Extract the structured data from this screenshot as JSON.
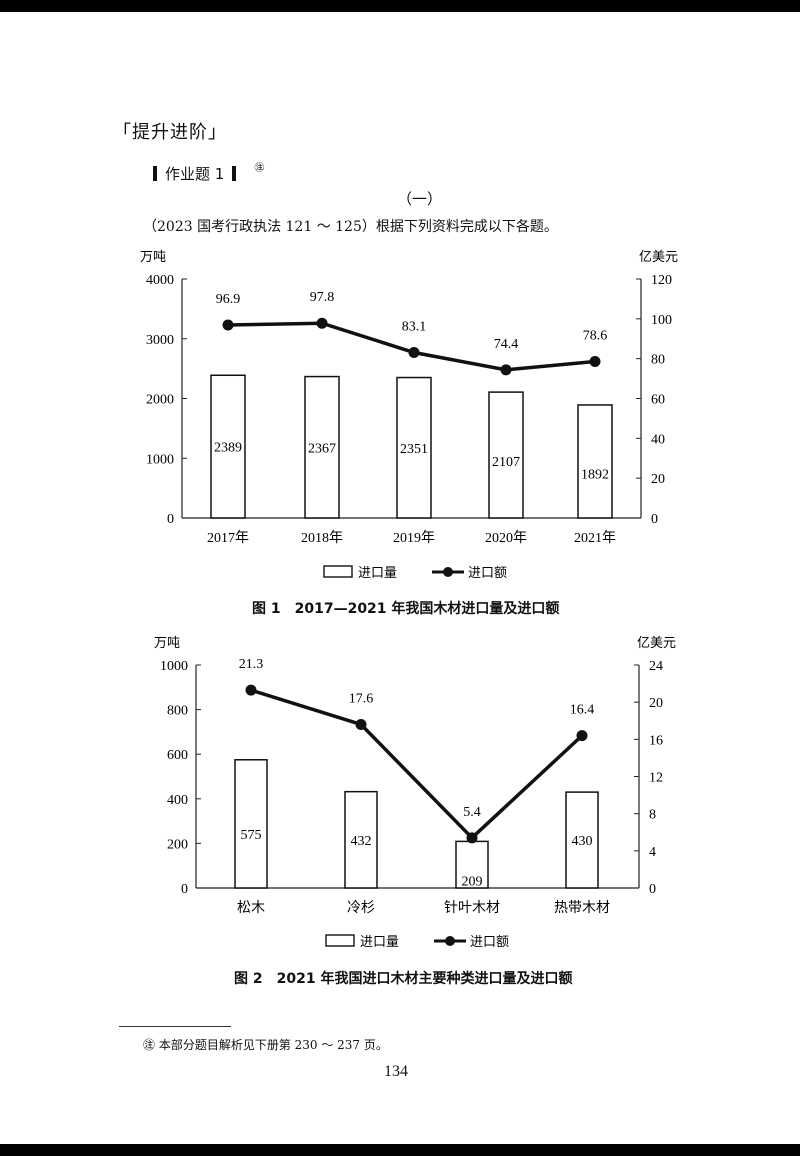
{
  "page": {
    "section_title": "「提升进阶」",
    "homework_title": "作业题 1",
    "homework_marker": "㊟",
    "part_label": "（一）",
    "intro": "（2023 国考行政执法 121 ～ 125）根据下列资料完成以下各题。",
    "footnote": "㊟ 本部分题目解析见下册第 230 ～ 237 页。",
    "page_number": "134"
  },
  "figure1": {
    "caption": "图 1　2017—2021 年我国木材进口量及进口额",
    "left_unit": "万吨",
    "right_unit": "亿美元",
    "legend": {
      "bar": "进口量",
      "line": "进口额"
    }
  },
  "figure2": {
    "caption": "图 2　2021 年我国进口木材主要种类进口量及进口额",
    "left_unit": "万吨",
    "right_unit": "亿美元",
    "legend": {
      "bar": "进口量",
      "line": "进口额"
    }
  },
  "chart_data": [
    {
      "type": "bar",
      "title": "图 1 2017—2021 年我国木材进口量及进口额",
      "categories": [
        "2017年",
        "2018年",
        "2019年",
        "2020年",
        "2021年"
      ],
      "series": [
        {
          "name": "进口量",
          "type": "bar",
          "axis": "left",
          "unit": "万吨",
          "values": [
            2389,
            2367,
            2351,
            2107,
            1892
          ]
        },
        {
          "name": "进口额",
          "type": "line",
          "axis": "right",
          "unit": "亿美元",
          "values": [
            96.9,
            97.8,
            83.1,
            74.4,
            78.6
          ]
        }
      ],
      "ylabel": "万吨",
      "ylabel_right": "亿美元",
      "ylim": [
        0,
        4000
      ],
      "ylim_right": [
        0,
        120
      ],
      "yticks": [
        0,
        1000,
        2000,
        3000,
        4000
      ],
      "yticks_right": [
        0,
        20,
        40,
        60,
        80,
        100,
        120
      ],
      "grid": false,
      "legend_position": "bottom"
    },
    {
      "type": "bar",
      "title": "图 2 2021 年我国进口木材主要种类进口量及进口额",
      "categories": [
        "松木",
        "冷杉",
        "针叶木材",
        "热带木材"
      ],
      "series": [
        {
          "name": "进口量",
          "type": "bar",
          "axis": "left",
          "unit": "万吨",
          "values": [
            575,
            432,
            209,
            430
          ]
        },
        {
          "name": "进口额",
          "type": "line",
          "axis": "right",
          "unit": "亿美元",
          "values": [
            21.3,
            17.6,
            5.4,
            16.4
          ]
        }
      ],
      "ylabel": "万吨",
      "ylabel_right": "亿美元",
      "ylim": [
        0,
        1000
      ],
      "ylim_right": [
        0,
        24
      ],
      "yticks": [
        0,
        200,
        400,
        600,
        800,
        1000
      ],
      "yticks_right": [
        0,
        4,
        8,
        12,
        16,
        20,
        24
      ],
      "grid": false,
      "legend_position": "bottom"
    }
  ]
}
